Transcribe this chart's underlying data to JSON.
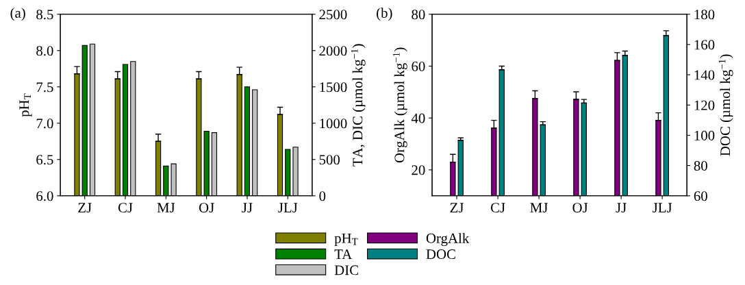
{
  "chart_data": [
    {
      "type": "bar",
      "title": "(a)",
      "ylabel": "pH$_{T}$",
      "y2label": "TA, DIC (µmol kg$^{−1}$)",
      "categories": [
        "ZJ",
        "CJ",
        "MJ",
        "OJ",
        "JJ",
        "JLJ"
      ],
      "series": [
        {
          "name": "pH$_{T}$",
          "color": "#808000",
          "values": [
            7.68,
            7.61,
            6.75,
            7.61,
            7.67,
            7.12
          ],
          "errors": [
            [
              7.68,
              7.78
            ],
            [
              7.61,
              7.71
            ],
            [
              6.75,
              6.85
            ],
            [
              7.61,
              7.71
            ],
            [
              7.67,
              7.77
            ],
            [
              7.12,
              7.22
            ]
          ]
        },
        {
          "name": "TA",
          "color": "#008000",
          "axis": "y2",
          "values": [
            2070,
            1810,
            410,
            890,
            1500,
            640
          ]
        },
        {
          "name": "DIC",
          "color": "#c0c0c0",
          "axis": "y2",
          "values": [
            2090,
            1850,
            440,
            870,
            1460,
            670
          ]
        }
      ],
      "ylim": [
        6.0,
        8.5
      ],
      "yticks": [
        {
          "value": 6.0,
          "label": "6.0"
        },
        {
          "value": 6.5,
          "label": "6.5"
        },
        {
          "value": 7.0,
          "label": "7.0"
        },
        {
          "value": 7.5,
          "label": "7.5"
        },
        {
          "value": 8.0,
          "label": "8.0"
        },
        {
          "value": 8.5,
          "label": "8.5"
        }
      ],
      "y2lim": [
        0,
        2500
      ],
      "y2ticks": [
        0,
        500,
        1000,
        1500,
        2000,
        2500
      ],
      "legend": "bottom"
    },
    {
      "type": "bar",
      "title": "(b)",
      "ylabel": "OrgAlk (µmol kg$^{−1}$)",
      "y2label": "DOC (µmol kg$^{−1}$)",
      "categories": [
        "ZJ",
        "CJ",
        "MJ",
        "OJ",
        "JJ",
        "JLJ"
      ],
      "series": [
        {
          "name": "OrgAlk",
          "color": "#800080",
          "values": [
            23.0,
            36.1,
            47.5,
            47.2,
            62.2,
            39.1
          ],
          "errors": [
            [
              23.0,
              26.0
            ],
            [
              36.1,
              39.1
            ],
            [
              47.5,
              50.5
            ],
            [
              47.2,
              50.1
            ],
            [
              62.2,
              65.2
            ],
            [
              39.1,
              42.0
            ]
          ]
        },
        {
          "name": "DOC",
          "color": "#008080",
          "axis": "y2",
          "values": [
            96.7,
            143.3,
            106.9,
            121.3,
            152.8,
            165.9
          ],
          "errors": [
            [
              96.7,
              98.3
            ],
            [
              143.3,
              145.7
            ],
            [
              106.9,
              109.0
            ],
            [
              121.3,
              123.7
            ],
            [
              152.8,
              155.7
            ],
            [
              165.9,
              169.1
            ]
          ]
        }
      ],
      "ylim": [
        10,
        80
      ],
      "yticks": [
        20,
        40,
        60,
        80
      ],
      "y2lim": [
        60,
        180
      ],
      "y2ticks": [
        60,
        80,
        100,
        120,
        140,
        160,
        180
      ],
      "legend": "bottom"
    }
  ]
}
